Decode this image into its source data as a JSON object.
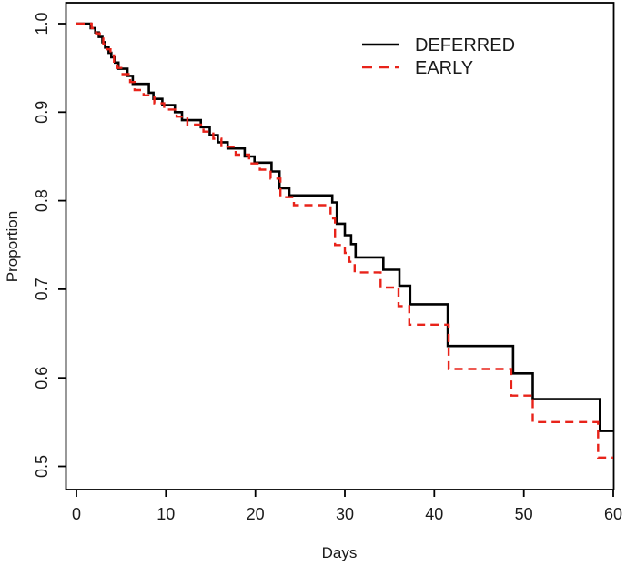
{
  "figure": {
    "background_color": "#ffffff",
    "frame_color": "#000000"
  },
  "chart_data": {
    "type": "line",
    "chart_style": "kaplan-meier-step-curves",
    "title": "",
    "xlabel": "Days",
    "ylabel": "Proportion",
    "xlim": [
      0,
      60
    ],
    "ylim": [
      0.473,
      1.022
    ],
    "grid": false,
    "x_ticks": [
      0,
      10,
      20,
      30,
      40,
      50,
      60
    ],
    "x_tick_labels": [
      "0",
      "10",
      "20",
      "30",
      "40",
      "50",
      "60"
    ],
    "y_ticks": [
      1.0,
      0.9,
      0.8,
      0.7,
      0.6,
      0.5
    ],
    "y_tick_labels": [
      "1.0",
      "0.9",
      "0.8",
      "0.7",
      "0.6",
      "0.5"
    ],
    "legend": {
      "position": "top-right-inside",
      "entries": [
        {
          "label": "DEFERRED",
          "color": "#000000",
          "line_style": "solid"
        },
        {
          "label": "EARLY",
          "color": "#e8231a",
          "line_style": "dashed"
        }
      ]
    },
    "series": [
      {
        "name": "DEFERRED",
        "color": "#000000",
        "line_style": "solid",
        "steps": [
          [
            0,
            1.0
          ],
          [
            1.6,
            0.995
          ],
          [
            2.1,
            0.99
          ],
          [
            2.5,
            0.985
          ],
          [
            2.9,
            0.979
          ],
          [
            3.2,
            0.973
          ],
          [
            3.6,
            0.967
          ],
          [
            3.9,
            0.962
          ],
          [
            4.3,
            0.956
          ],
          [
            4.7,
            0.949
          ],
          [
            5.7,
            0.941
          ],
          [
            6.3,
            0.932
          ],
          [
            8.1,
            0.922
          ],
          [
            8.6,
            0.915
          ],
          [
            9.6,
            0.908
          ],
          [
            11.0,
            0.9
          ],
          [
            11.8,
            0.891
          ],
          [
            13.9,
            0.883
          ],
          [
            14.9,
            0.874
          ],
          [
            15.8,
            0.866
          ],
          [
            16.9,
            0.859
          ],
          [
            18.8,
            0.85
          ],
          [
            19.9,
            0.843
          ],
          [
            21.8,
            0.833
          ],
          [
            22.7,
            0.814
          ],
          [
            23.8,
            0.806
          ],
          [
            28.6,
            0.798
          ],
          [
            29.1,
            0.774
          ],
          [
            30.0,
            0.761
          ],
          [
            30.7,
            0.751
          ],
          [
            31.2,
            0.736
          ],
          [
            34.3,
            0.722
          ],
          [
            36.1,
            0.704
          ],
          [
            37.3,
            0.683
          ],
          [
            41.5,
            0.636
          ],
          [
            48.8,
            0.605
          ],
          [
            51.0,
            0.576
          ],
          [
            58.5,
            0.54
          ]
        ],
        "end_x": 60,
        "end_value": 0.54
      },
      {
        "name": "EARLY",
        "color": "#e8231a",
        "line_style": "dashed",
        "steps": [
          [
            0,
            1.0
          ],
          [
            1.7,
            0.995
          ],
          [
            2.2,
            0.989
          ],
          [
            2.6,
            0.983
          ],
          [
            3.0,
            0.977
          ],
          [
            3.4,
            0.971
          ],
          [
            3.8,
            0.964
          ],
          [
            4.2,
            0.957
          ],
          [
            4.6,
            0.95
          ],
          [
            5.0,
            0.943
          ],
          [
            6.0,
            0.934
          ],
          [
            6.5,
            0.925
          ],
          [
            7.5,
            0.919
          ],
          [
            8.7,
            0.91
          ],
          [
            9.8,
            0.903
          ],
          [
            11.2,
            0.895
          ],
          [
            12.4,
            0.886
          ],
          [
            14.2,
            0.878
          ],
          [
            15.3,
            0.87
          ],
          [
            16.2,
            0.861
          ],
          [
            17.8,
            0.852
          ],
          [
            19.3,
            0.842
          ],
          [
            20.5,
            0.835
          ],
          [
            21.7,
            0.825
          ],
          [
            22.8,
            0.804
          ],
          [
            24.3,
            0.795
          ],
          [
            28.4,
            0.78
          ],
          [
            28.9,
            0.75
          ],
          [
            30.0,
            0.741
          ],
          [
            30.5,
            0.731
          ],
          [
            31.1,
            0.719
          ],
          [
            34.0,
            0.702
          ],
          [
            36.0,
            0.681
          ],
          [
            37.2,
            0.66
          ],
          [
            41.6,
            0.61
          ],
          [
            48.6,
            0.58
          ],
          [
            51.0,
            0.55
          ],
          [
            58.3,
            0.51
          ]
        ],
        "end_x": 60,
        "end_value": 0.51
      }
    ]
  }
}
